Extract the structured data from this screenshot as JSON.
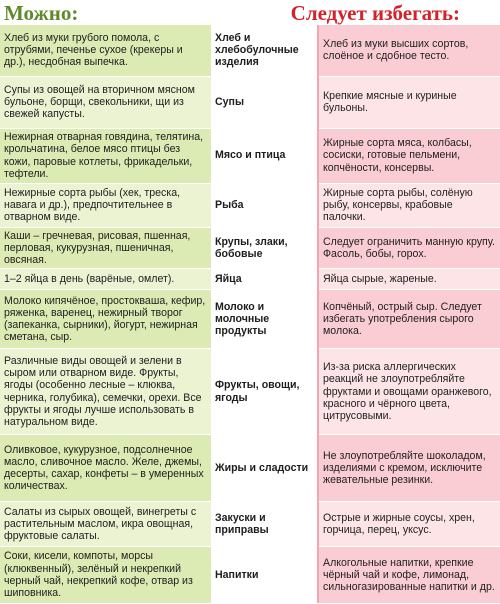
{
  "header": {
    "allowed": "Можно:",
    "avoid": "Следует избегать:"
  },
  "rows": [
    {
      "allowed": "Хлеб из муки грубого помола, с отрубями, печенье сухое (крекеры и др.), несдобная выпечка.",
      "category": "Хлеб и хлебобулочные изделия",
      "avoid": "Хлеб из муки высших сортов, слоёное и сдобное тесто."
    },
    {
      "allowed": "Супы из овощей на вторичном мясном бульоне, борщи, свекольники, щи из свежей капусты.",
      "category": "Супы",
      "avoid": "Крепкие мясные и куриные бульоны."
    },
    {
      "allowed": "Нежирная отварная говядина, телятина, крольчатина, белое мясо птицы без кожи, паровые котлеты, фрикадельки, тефтели.",
      "category": "Мясо и птица",
      "avoid": "Жирные сорта мяса, колбасы, сосиски, готовые пельмени, копчёности, консервы."
    },
    {
      "allowed": "Нежирные сорта рыбы (хек, треска, навага и др.), предпочтительнее в отварном виде.",
      "category": "Рыба",
      "avoid": "Жирные сорта рыбы, солёную рыбу, консервы, крабовые палочки."
    },
    {
      "allowed": "Каши – гречневая, рисовая, пшенная, перловая, кукурузная, пшеничная, овсяная.",
      "category": "Крупы, злаки, бобовые",
      "avoid": "Следует ограничить манную крупу. Фасоль, бобы, горох."
    },
    {
      "allowed": "1–2 яйца в день (варёные, омлет).",
      "category": "Яйца",
      "avoid": "Яйца сырые, жареные."
    },
    {
      "allowed": "Молоко кипячёное, простокваша, кефир, ряженка, варенец, нежирный творог (запеканка, сырники), йогурт, нежирная сметана, сыр.",
      "category": "Молоко и молочные продукты",
      "avoid": "Копчёный, острый сыр. Следует избегать употребления сырого молока."
    },
    {
      "allowed": "Различные виды овощей и зелени в сыром или отварном виде. Фрукты, ягоды (особенно лесные – клюква, черника, голубика), семечки, орехи. Все фрукты и ягоды лучше использовать в натуральном виде.",
      "category": "Фрукты, овощи, ягоды",
      "avoid": "Из-за риска аллергических реакций не злоупотребляйте фруктами и овощами оранжевого, красного и чёрного цвета, цитрусовыми."
    },
    {
      "allowed": "Оливковое, кукурузное, подсолнечное масло, сливочное масло. Желе, джемы, десерты, сахар, конфеты – в умеренных количествах.",
      "category": "Жиры и сладости",
      "avoid": "Не злоупотребляйте шоколадом, изделиями с кремом, исключите жевательные резинки."
    },
    {
      "allowed": "Салаты из сырых овощей, винегреты с растительным маслом, икра овощная, фруктовые салаты.",
      "category": "Закуски и приправы",
      "avoid": "Острые и жирные соусы, хрен, горчица, перец, уксус."
    },
    {
      "allowed": "Соки, кисели, компоты, морсы (клюквенный), зелёный и некрепкий черный чай, некрепкий кофе, отвар из шиповника.",
      "category": "Напитки",
      "avoid": "Алкогольные напитки, крепкие чёрный чай и кофе, лимонад, сильногазированные напитки и др."
    }
  ]
}
